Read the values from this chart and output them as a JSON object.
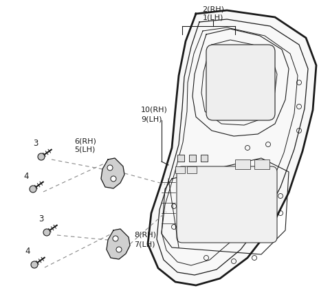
{
  "background_color": "#ffffff",
  "line_color": "#1a1a1a",
  "dashed_color": "#888888",
  "labels": {
    "top_rh": "2(RH)",
    "top_lh": "1(LH)",
    "mid_rh": "10(RH)",
    "mid_lh": "9(LH)",
    "upper_rh": "6(RH)",
    "upper_lh": "5(LH)",
    "lower_rh": "8(RH)",
    "lower_lh": "7(LH)",
    "n3a": "3",
    "n4a": "4",
    "n3b": "3",
    "n4b": "4"
  }
}
